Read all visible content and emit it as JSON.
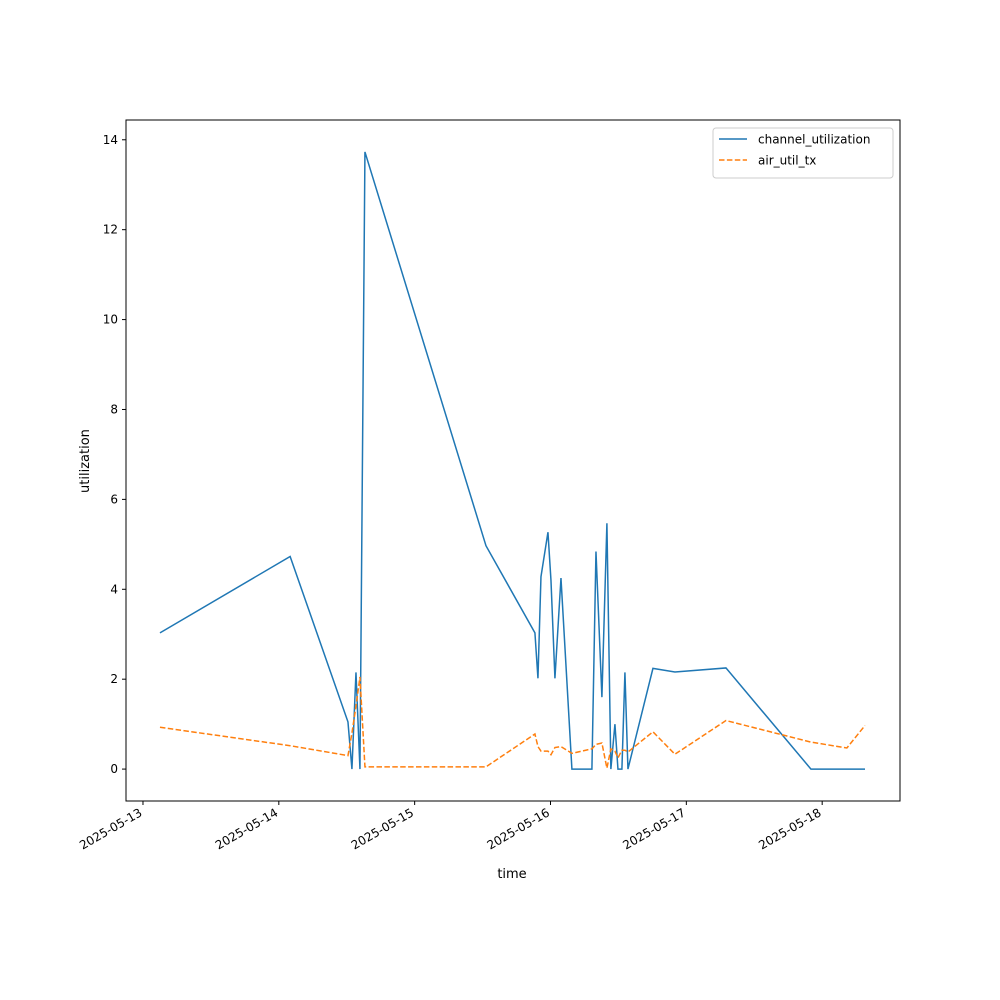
{
  "chart_data": {
    "type": "line",
    "x_label": "time",
    "y_label": "utilization",
    "x": [
      "2025-05-13T03:00",
      "2025-05-14T02:00",
      "2025-05-14T12:13",
      "2025-05-14T12:55",
      "2025-05-14T13:38",
      "2025-05-14T14:20",
      "2025-05-14T15:13",
      "2025-05-15T12:36",
      "2025-05-15T21:15",
      "2025-05-15T21:47",
      "2025-05-15T22:19",
      "2025-05-15T23:33",
      "2025-05-16T00:05",
      "2025-05-16T00:47",
      "2025-05-16T01:51",
      "2025-05-16T03:47",
      "2025-05-16T07:19",
      "2025-05-16T08:02",
      "2025-05-16T09:05",
      "2025-05-16T09:58",
      "2025-05-16T10:40",
      "2025-05-16T11:23",
      "2025-05-16T11:55",
      "2025-05-16T12:37",
      "2025-05-16T13:09",
      "2025-05-16T13:41",
      "2025-05-16T18:06",
      "2025-05-16T21:59",
      "2025-05-17T07:00",
      "2025-05-17T22:01",
      "2025-05-18T04:22",
      "2025-05-18T07:34"
    ],
    "series": [
      {
        "name": "channel_utilization",
        "color": "#1f77b4",
        "dash": "solid",
        "values": [
          3.03,
          4.73,
          1.05,
          0,
          2.15,
          0,
          13.73,
          4.97,
          3.03,
          2.02,
          4.28,
          5.27,
          4.2,
          2.02,
          4.25,
          0,
          0,
          4.84,
          1.6,
          5.47,
          0,
          1.0,
          0,
          0,
          2.15,
          0,
          2.24,
          2.16,
          2.25,
          0,
          0,
          0
        ]
      },
      {
        "name": "air_util_tx",
        "color": "#ff7f0e",
        "dash": "dashed",
        "values": [
          0.93,
          0.52,
          0.3,
          0.8,
          1.4,
          2.05,
          0.05,
          0.05,
          0.78,
          0.5,
          0.4,
          0.4,
          0.32,
          0.48,
          0.5,
          0.35,
          0.45,
          0.55,
          0.58,
          0.02,
          0.45,
          0.4,
          0.25,
          0.42,
          0.42,
          0.38,
          0.83,
          0.33,
          1.08,
          0.6,
          0.47,
          0.97
        ]
      }
    ],
    "xlim": [
      "2025-05-12T21:00",
      "2025-05-18T13:45"
    ],
    "xticks": [
      "2025-05-13",
      "2025-05-14",
      "2025-05-15",
      "2025-05-16",
      "2025-05-17",
      "2025-05-18"
    ],
    "ylim": [
      -0.71,
      14.44
    ],
    "yticks": [
      0,
      2,
      4,
      6,
      8,
      10,
      12,
      14
    ],
    "legend": "upper right"
  }
}
